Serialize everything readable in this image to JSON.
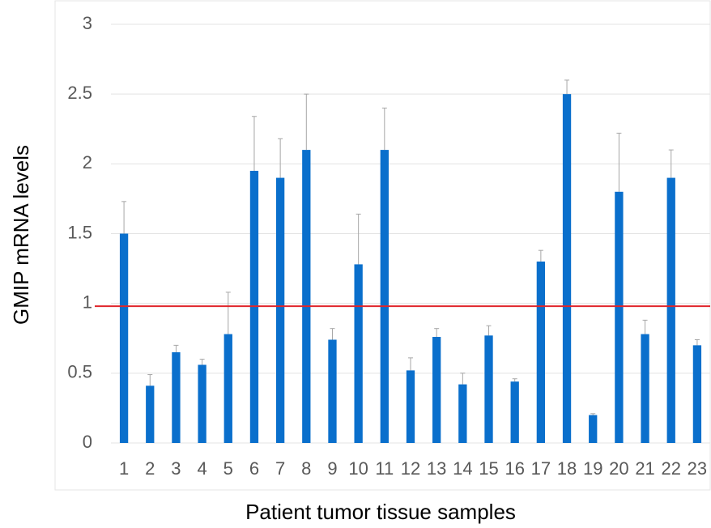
{
  "chart_data": {
    "type": "bar",
    "xlabel": "Patient tumor tissue samples",
    "ylabel": "GMIP mRNA levels",
    "categories": [
      "1",
      "2",
      "3",
      "4",
      "5",
      "6",
      "7",
      "8",
      "9",
      "10",
      "11",
      "12",
      "13",
      "14",
      "15",
      "16",
      "17",
      "18",
      "19",
      "20",
      "21",
      "22",
      "23"
    ],
    "values": [
      1.5,
      0.41,
      0.65,
      0.56,
      0.78,
      1.95,
      1.9,
      2.1,
      0.74,
      1.28,
      2.1,
      0.52,
      0.76,
      0.42,
      0.77,
      0.44,
      1.3,
      2.5,
      0.2,
      1.8,
      0.78,
      1.9,
      0.7
    ],
    "errors": [
      0.23,
      0.08,
      0.05,
      0.04,
      0.3,
      0.39,
      0.28,
      0.4,
      0.08,
      0.36,
      0.3,
      0.09,
      0.06,
      0.08,
      0.07,
      0.02,
      0.08,
      0.1,
      0.01,
      0.42,
      0.1,
      0.2,
      0.04
    ],
    "color": "#0a6fcc",
    "error_color": "#a6a6a6",
    "reference_line": 0.98,
    "reference_color": "#e0262b",
    "ylim": [
      0,
      3
    ],
    "yticks": [
      0,
      0.5,
      1,
      1.5,
      2,
      2.5,
      3
    ],
    "grid": true
  }
}
